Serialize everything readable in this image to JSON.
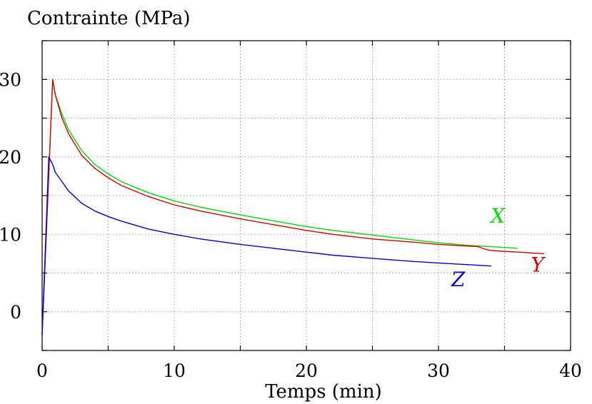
{
  "chart_data": {
    "type": "line",
    "ylabel": "Contrainte (MPa)",
    "xlabel": "Temps (min)",
    "xlim": [
      0,
      40
    ],
    "ylim": [
      -5,
      35
    ],
    "xticks": [
      0,
      10,
      20,
      30,
      40
    ],
    "yticks": [
      0,
      10,
      20,
      30
    ],
    "grid": true,
    "series": [
      {
        "name": "X",
        "color": "#00dd00",
        "x": [
          0,
          0.8,
          1,
          1.5,
          2,
          3,
          4,
          5,
          6,
          8,
          10,
          12,
          15,
          18,
          20,
          22,
          25,
          28,
          30,
          32,
          34,
          36
        ],
        "y": [
          -3,
          30,
          28,
          25.5,
          23.5,
          20.8,
          19,
          17.8,
          16.8,
          15.4,
          14.3,
          13.5,
          12.5,
          11.6,
          11.0,
          10.5,
          9.9,
          9.3,
          8.9,
          8.6,
          8.4,
          8.2
        ]
      },
      {
        "name": "Y",
        "color": "#dd0000",
        "x": [
          0,
          0.8,
          1,
          1.5,
          2,
          3,
          4,
          5,
          6,
          8,
          10,
          12,
          15,
          18,
          20,
          22,
          25,
          28,
          30,
          32,
          33,
          33.5,
          34,
          36,
          38
        ],
        "y": [
          -3,
          30,
          28,
          25,
          23,
          20.2,
          18.5,
          17.3,
          16.3,
          14.9,
          13.8,
          13.0,
          12.0,
          11.1,
          10.5,
          10.0,
          9.4,
          9.0,
          8.7,
          8.5,
          8.4,
          8.1,
          7.9,
          7.7,
          7.5
        ]
      },
      {
        "name": "Z",
        "color": "#0000dd",
        "x": [
          0,
          0.5,
          0.8,
          1,
          1.5,
          2,
          3,
          4,
          5,
          6,
          8,
          10,
          12,
          15,
          18,
          20,
          22,
          25,
          28,
          30,
          32,
          34
        ],
        "y": [
          -3,
          20,
          19,
          18,
          16.8,
          15.6,
          14,
          13.0,
          12.3,
          11.7,
          10.7,
          10.0,
          9.4,
          8.7,
          8.1,
          7.7,
          7.3,
          6.9,
          6.5,
          6.3,
          6.1,
          5.9
        ]
      }
    ],
    "annotations": [
      {
        "text": "X",
        "color": "#00dd00",
        "x": 34.5,
        "y": 11.5
      },
      {
        "text": "Y",
        "color": "#dd0000",
        "x": 37.5,
        "y": 5.2
      },
      {
        "text": "Z",
        "color": "#0000dd",
        "x": 31.5,
        "y": 3.3
      }
    ]
  }
}
